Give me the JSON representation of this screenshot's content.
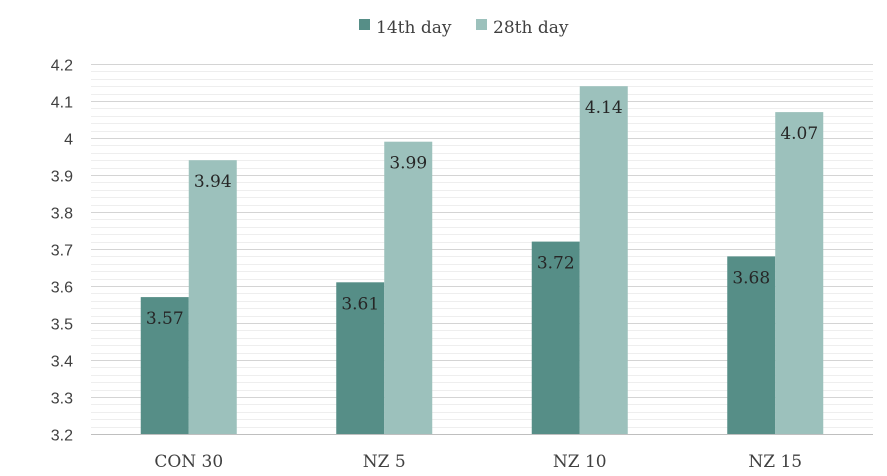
{
  "chart_data": {
    "type": "bar",
    "title": "",
    "xlabel": "",
    "ylabel": "",
    "categories": [
      "CON 30",
      "NZ 5",
      "NZ 10",
      "NZ 15"
    ],
    "series": [
      {
        "name": "14th day",
        "color": "#568E87",
        "values": [
          3.57,
          3.61,
          3.72,
          3.68
        ],
        "labels": [
          "3.57",
          "3.61",
          "3.72",
          "3.68"
        ]
      },
      {
        "name": "28th day",
        "color": "#9CC1BC",
        "values": [
          3.94,
          3.99,
          4.14,
          4.07
        ],
        "labels": [
          "3.94",
          "3.99",
          "4.14",
          "4.07"
        ]
      }
    ],
    "ylim": [
      3.2,
      4.2
    ],
    "yticks": [
      3.2,
      3.3,
      3.4,
      3.5,
      3.6,
      3.7,
      3.8,
      3.9,
      4.0,
      4.1,
      4.2
    ],
    "ytick_labels": [
      "3.2",
      "3.3",
      "3.4",
      "3.5",
      "3.6",
      "3.7",
      "3.8",
      "3.9",
      "4",
      "4.1",
      "4.2"
    ],
    "grid": true,
    "legend_position": "top-center"
  }
}
